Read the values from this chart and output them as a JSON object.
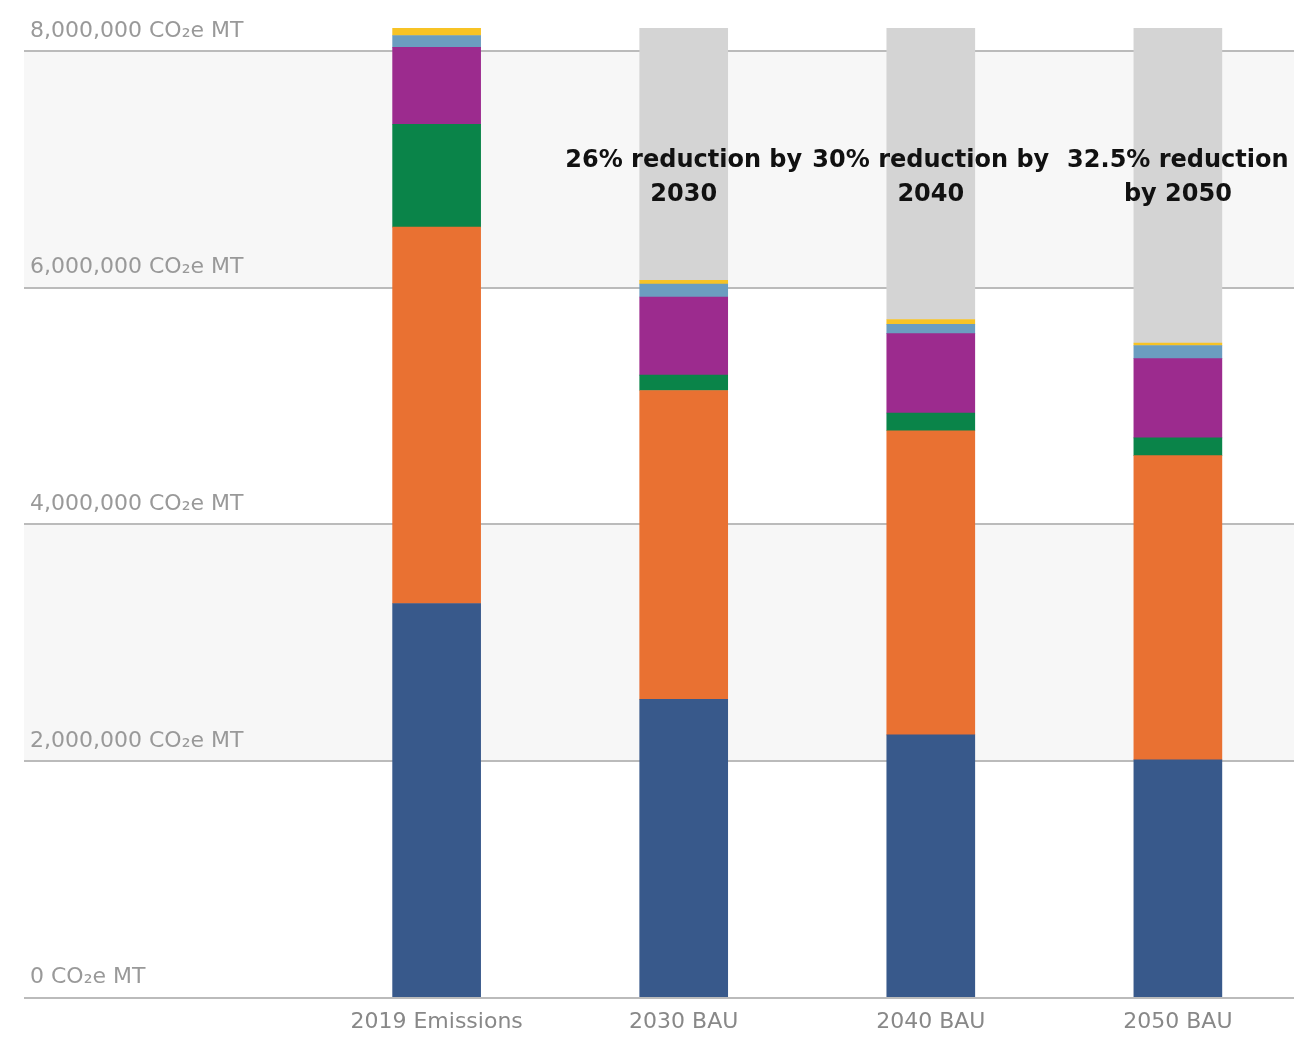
{
  "chart_data": {
    "type": "bar",
    "stacked": true,
    "categories": [
      "2019 Emissions",
      "2030 BAU",
      "2040 BAU",
      "2050 BAU"
    ],
    "series": [
      {
        "color": "#38598b",
        "values": [
          3330000,
          2520000,
          2220000,
          2010000
        ]
      },
      {
        "color": "#e97132",
        "values": [
          3180000,
          2610000,
          2570000,
          2570000
        ]
      },
      {
        "color": "#0a8449",
        "values": [
          870000,
          130000,
          150000,
          150000
        ]
      },
      {
        "color": "#9c2b8e",
        "values": [
          650000,
          660000,
          670000,
          670000
        ]
      },
      {
        "color": "#6b9dc0",
        "values": [
          100000,
          110000,
          80000,
          110000
        ]
      },
      {
        "color": "#f7c325",
        "values": [
          60000,
          30000,
          40000,
          20000
        ]
      },
      {
        "color": "#d4d4d4",
        "values": [
          null,
          2130000,
          2460000,
          2660000
        ]
      }
    ],
    "ylim": [
      0,
      8200000
    ],
    "yticks": [
      {
        "value": 0,
        "label": "0 CO₂e MT"
      },
      {
        "value": 2000000,
        "label": "2,000,000 CO₂e MT"
      },
      {
        "value": 4000000,
        "label": "4,000,000 CO₂e MT"
      },
      {
        "value": 6000000,
        "label": "6,000,000 CO₂e MT"
      },
      {
        "value": 8000000,
        "label": "8,000,000 CO₂e MT"
      }
    ],
    "grid": "y",
    "bands": [
      {
        "axis": "y",
        "from": 6000000,
        "to": 8000000,
        "color": "#f7f7f7"
      },
      {
        "axis": "y",
        "from": 2000000,
        "to": 4000000,
        "color": "#f7f7f7"
      }
    ],
    "annotations": [
      "26% reduction by 2030",
      "30% reduction by 2040",
      "32.5% reduction by 2050"
    ]
  }
}
